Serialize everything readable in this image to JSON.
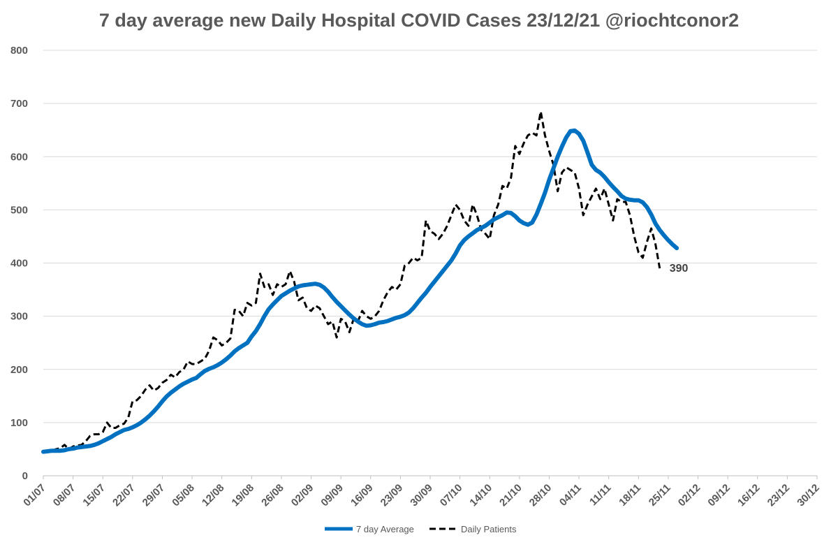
{
  "chart_data": {
    "type": "line",
    "title": "7 day average new Daily Hospital COVID Cases 23/12/21 @riochtconor2",
    "xlabel": "",
    "ylabel": "",
    "ylim": [
      0,
      800
    ],
    "yticks": [
      0,
      100,
      200,
      300,
      400,
      500,
      600,
      700,
      800
    ],
    "x_start": "01/07",
    "x_end_label": "30/12",
    "xticks": [
      "01/07",
      "08/07",
      "15/07",
      "22/07",
      "29/07",
      "05/08",
      "12/08",
      "19/08",
      "26/08",
      "02/09",
      "09/09",
      "16/09",
      "23/09",
      "30/09",
      "07/10",
      "14/10",
      "21/10",
      "28/10",
      "04/11",
      "11/11",
      "18/11",
      "25/11",
      "02/12",
      "09/12",
      "16/12",
      "23/12",
      "30/12"
    ],
    "grid": true,
    "legend_position": "bottom",
    "end_label": "390",
    "series": [
      {
        "name": "7 day Average",
        "color": "#0070C0",
        "style": "solid",
        "values": [
          45,
          46,
          47,
          47,
          47,
          48,
          50,
          51,
          53,
          54,
          55,
          56,
          58,
          61,
          65,
          69,
          73,
          78,
          82,
          86,
          88,
          91,
          95,
          100,
          106,
          113,
          121,
          130,
          140,
          149,
          156,
          162,
          168,
          173,
          177,
          181,
          184,
          191,
          197,
          201,
          204,
          208,
          213,
          219,
          226,
          234,
          240,
          245,
          250,
          262,
          272,
          285,
          300,
          313,
          322,
          330,
          338,
          343,
          348,
          352,
          356,
          358,
          359,
          360,
          361,
          359,
          354,
          346,
          336,
          327,
          319,
          311,
          303,
          296,
          290,
          285,
          282,
          283,
          285,
          288,
          289,
          291,
          294,
          297,
          299,
          302,
          307,
          315,
          325,
          335,
          344,
          355,
          365,
          375,
          385,
          395,
          405,
          418,
          433,
          443,
          450,
          456,
          462,
          466,
          470,
          476,
          482,
          486,
          490,
          495,
          494,
          488,
          480,
          475,
          472,
          476,
          491,
          511,
          532,
          557,
          578,
          600,
          619,
          636,
          648,
          649,
          643,
          630,
          608,
          585,
          575,
          570,
          562,
          552,
          543,
          535,
          526,
          521,
          519,
          518,
          518,
          514,
          505,
          491,
          474,
          462,
          452,
          443,
          435,
          428
        ]
      },
      {
        "name": "Daily Patients",
        "color": "#000000",
        "style": "dashed",
        "values": [
          45,
          45,
          47,
          50,
          52,
          58,
          50,
          55,
          57,
          58,
          65,
          75,
          78,
          78,
          82,
          100,
          90,
          90,
          95,
          98,
          110,
          140,
          142,
          150,
          162,
          170,
          160,
          165,
          175,
          180,
          190,
          185,
          195,
          200,
          215,
          210,
          210,
          215,
          220,
          235,
          260,
          255,
          245,
          250,
          258,
          312,
          310,
          300,
          325,
          320,
          325,
          380,
          355,
          360,
          340,
          360,
          355,
          360,
          385,
          365,
          330,
          335,
          315,
          310,
          320,
          315,
          300,
          285,
          290,
          260,
          295,
          290,
          270,
          295,
          290,
          310,
          300,
          295,
          300,
          310,
          330,
          345,
          355,
          350,
          360,
          395,
          400,
          410,
          405,
          410,
          480,
          460,
          455,
          445,
          455,
          470,
          490,
          510,
          500,
          480,
          470,
          510,
          490,
          462,
          455,
          445,
          490,
          510,
          545,
          540,
          560,
          620,
          605,
          625,
          640,
          645,
          640,
          685,
          640,
          610,
          585,
          535,
          570,
          580,
          575,
          570,
          540,
          490,
          510,
          525,
          540,
          520,
          540,
          510,
          480,
          520,
          515,
          515,
          490,
          450,
          420,
          410,
          440,
          465,
          435,
          390
        ]
      }
    ]
  }
}
